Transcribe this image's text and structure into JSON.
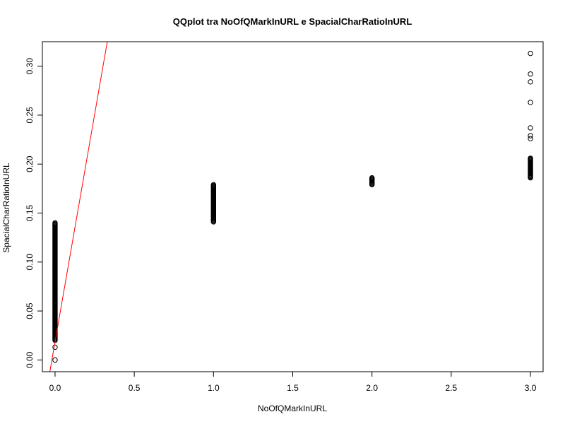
{
  "chart_data": {
    "type": "scatter",
    "title": "QQplot tra NoOfQMarkInURL e SpacialCharRatioInURL",
    "xlabel": "NoOfQMarkInURL",
    "ylabel": "SpacialCharRatioInURL",
    "xlim": [
      -0.08,
      3.08
    ],
    "ylim": [
      -0.012,
      0.325
    ],
    "xticks": [
      0.0,
      0.5,
      1.0,
      1.5,
      2.0,
      2.5,
      3.0
    ],
    "xtick_labels": [
      "0.0",
      "0.5",
      "1.0",
      "1.5",
      "2.0",
      "2.5",
      "3.0"
    ],
    "yticks": [
      0.0,
      0.05,
      0.1,
      0.15,
      0.2,
      0.25,
      0.3
    ],
    "ytick_labels": [
      "0.00",
      "0.05",
      "0.10",
      "0.15",
      "0.20",
      "0.25",
      "0.30"
    ],
    "grid": false,
    "point_marker": "open-circle",
    "point_color": "#000000",
    "line_color": "#ff0000",
    "reference_line": {
      "intercept": 0.0185,
      "slope": 0.93
    },
    "groups": [
      {
        "x": 0,
        "y_range": [
          0.02,
          0.14
        ],
        "outliers": [
          0.013,
          0.0
        ]
      },
      {
        "x": 1,
        "y_range": [
          0.141,
          0.179
        ],
        "outliers": []
      },
      {
        "x": 2,
        "y_range": [
          0.179,
          0.186
        ],
        "outliers": []
      },
      {
        "x": 3,
        "y_range": [
          0.186,
          0.206
        ],
        "outliers": [
          0.226,
          0.229,
          0.237,
          0.263,
          0.284,
          0.292,
          0.313
        ]
      }
    ]
  }
}
